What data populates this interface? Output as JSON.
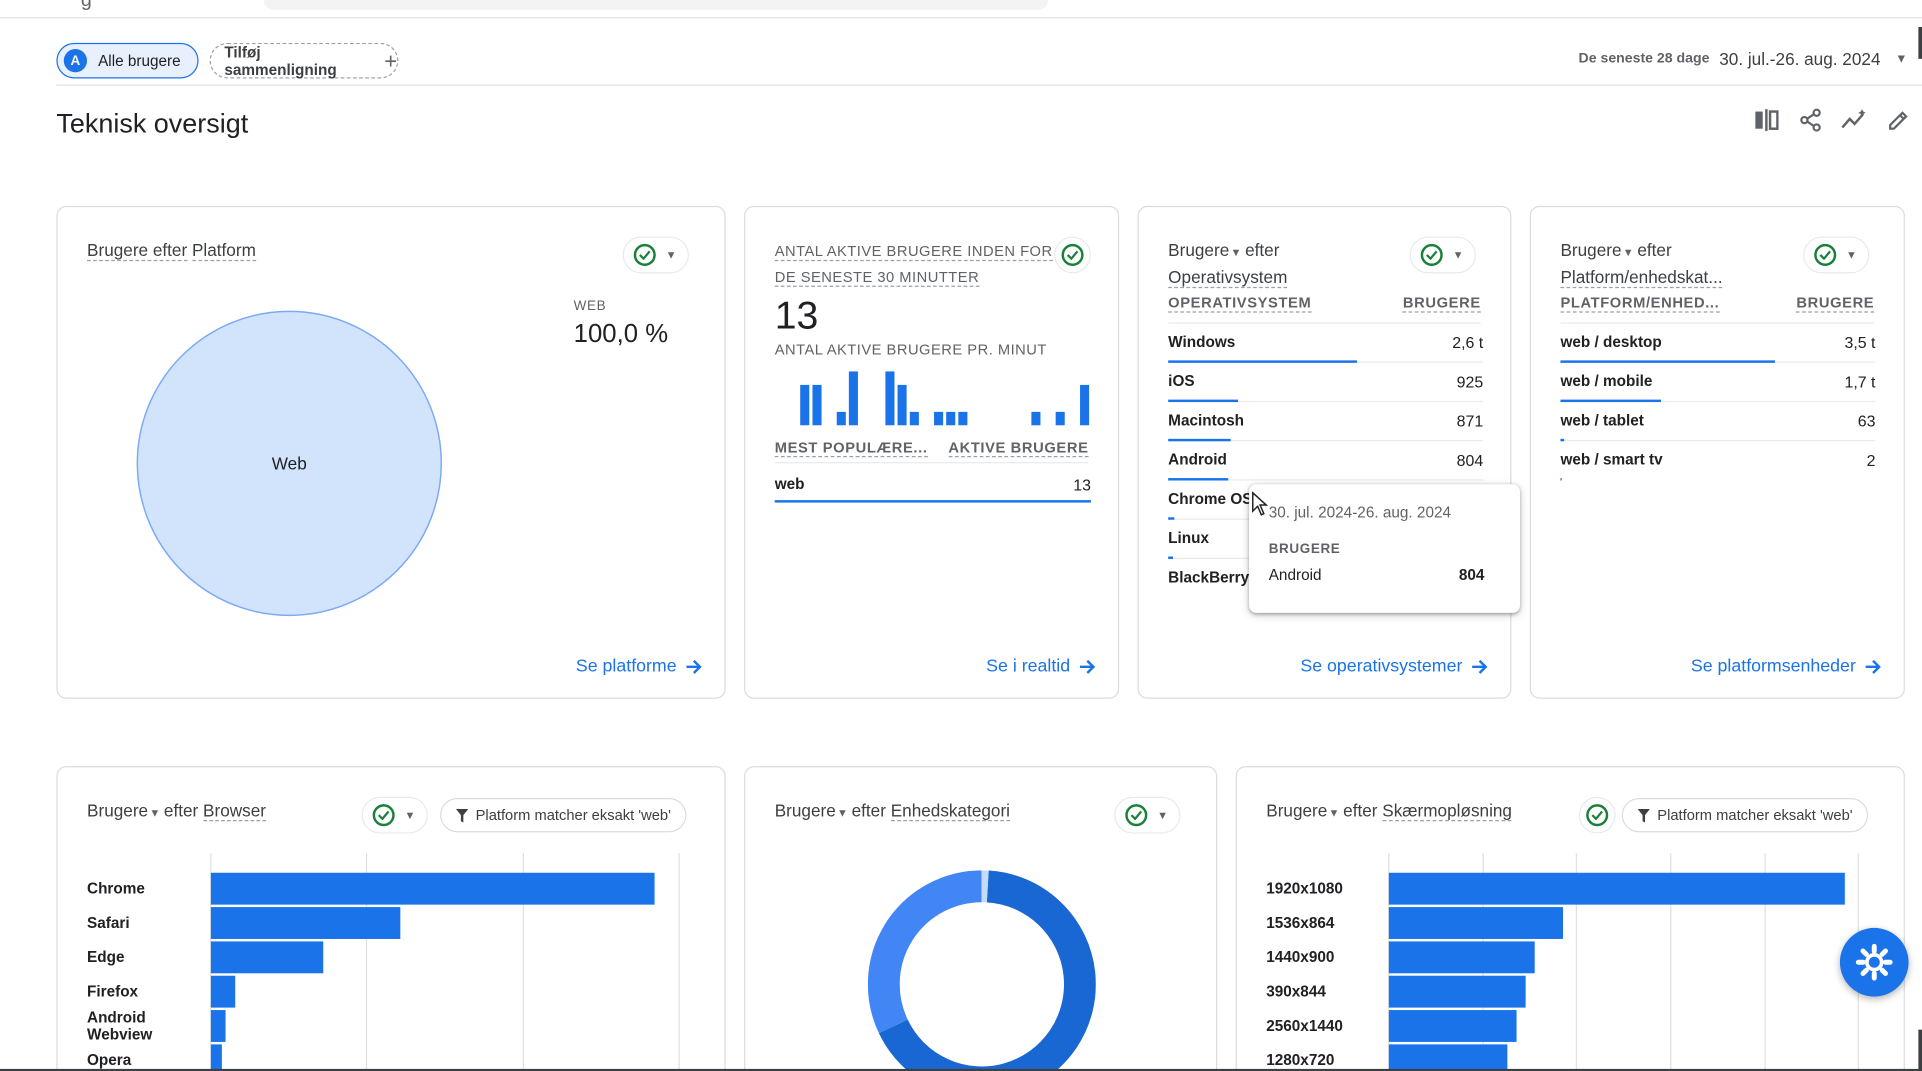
{
  "filters": {
    "all_users_initial": "A",
    "all_users_label": "Alle brugere",
    "add_comparison_label": "Tilføj sammenligning",
    "date_range_label": "De seneste 28 dage",
    "date_range_value": "30. jul.-26. aug. 2024"
  },
  "page": {
    "title": "Teknisk oversigt"
  },
  "toolbar": {
    "icons": [
      "compare-icon",
      "share-icon",
      "insights-icon",
      "edit-icon"
    ]
  },
  "cards": {
    "platform": {
      "title_prefix": "Brugere efter",
      "title_dim": "Platform",
      "legend_label": "WEB",
      "legend_value": "100,0 %",
      "slice_label": "Web",
      "link": "Se platforme",
      "chart_data": {
        "type": "pie",
        "categories": [
          "Web"
        ],
        "values": [
          100.0
        ],
        "title": "Brugere efter Platform"
      }
    },
    "realtime": {
      "title_line1": "ANTAL AKTIVE BRUGERE INDEN FOR",
      "title_line2": "DE SENESTE 30 MINUTTER",
      "big_number": "13",
      "per_minute_label": "ANTAL AKTIVE BRUGERE PR. MINUT",
      "col1": "MEST POPULÆRE...",
      "col2": "AKTIVE BRUGERE",
      "row_name": "web",
      "row_value": "13",
      "link": "Se i realtid",
      "chart_data": {
        "type": "bar",
        "values": [
          0,
          0,
          3,
          3,
          0,
          1,
          4,
          0,
          0,
          4,
          3,
          1,
          0,
          1,
          1,
          1,
          0,
          0,
          0,
          0,
          0,
          1,
          0,
          1,
          0,
          3
        ]
      }
    },
    "os": {
      "title_prefix": "Brugere",
      "title_mid": "efter",
      "title_dim": "Operativsystem",
      "col1": "OPERATIVSYSTEM",
      "col2": "BRUGERE",
      "rows": [
        {
          "name": "Windows",
          "value": "2,6 t",
          "fraction": 0.6
        },
        {
          "name": "iOS",
          "value": "925",
          "fraction": 0.22
        },
        {
          "name": "Macintosh",
          "value": "871",
          "fraction": 0.2
        },
        {
          "name": "Android",
          "value": "804",
          "fraction": 0.19
        },
        {
          "name": "Chrome OS",
          "value": "",
          "fraction": 0.02
        },
        {
          "name": "Linux",
          "value": "",
          "fraction": 0.015
        },
        {
          "name": "BlackBerry",
          "value": "",
          "fraction": 0.0
        }
      ],
      "link": "Se operativsystemer"
    },
    "platform_device": {
      "title_prefix": "Brugere",
      "title_mid": "efter",
      "title_dim": "Platform/enhedskat...",
      "col1": "PLATFORM/ENHED...",
      "col2": "BRUGERE",
      "rows": [
        {
          "name": "web / desktop",
          "value": "3,5 t",
          "fraction": 0.68
        },
        {
          "name": "web / mobile",
          "value": "1,7 t",
          "fraction": 0.32
        },
        {
          "name": "web / tablet",
          "value": "63",
          "fraction": 0.012
        },
        {
          "name": "web / smart tv",
          "value": "2",
          "fraction": 0.003
        }
      ],
      "link": "Se platformsenheder"
    },
    "browser": {
      "title_prefix": "Brugere",
      "title_mid": "efter",
      "title_dim": "Browser",
      "filter": "Platform matcher eksakt 'web'",
      "chart_data": {
        "type": "bar",
        "categories": [
          "Chrome",
          "Safari",
          "Edge",
          "Firefox",
          "Android Webview",
          "Opera"
        ],
        "values": [
          3630,
          1550,
          920,
          200,
          120,
          90
        ]
      }
    },
    "device_category": {
      "title_prefix": "Brugere",
      "title_mid": "efter",
      "title_dim": "Enhedskategori",
      "chart_data": {
        "type": "pie",
        "categories": [
          "desktop",
          "mobile",
          "tablet"
        ],
        "values": [
          67,
          32,
          1
        ]
      }
    },
    "resolution": {
      "title_prefix": "Brugere",
      "title_mid": "efter",
      "title_dim": "Skærmopløsning",
      "filter": "Platform matcher eksakt 'web'",
      "chart_data": {
        "type": "bar",
        "categories": [
          "1920x1080",
          "1536x864",
          "1440x900",
          "390x844",
          "2560x1440",
          "1280x720"
        ],
        "values": [
          1000,
          382,
          320,
          300,
          280,
          260
        ]
      }
    }
  },
  "tooltip": {
    "date": "30. jul. 2024-26. aug. 2024",
    "metric": "BRUGERE",
    "name": "Android",
    "value": "804"
  },
  "colors": {
    "accent": "#1a73e8",
    "pie_fill": "#d2e3fc",
    "check": "#188038"
  }
}
